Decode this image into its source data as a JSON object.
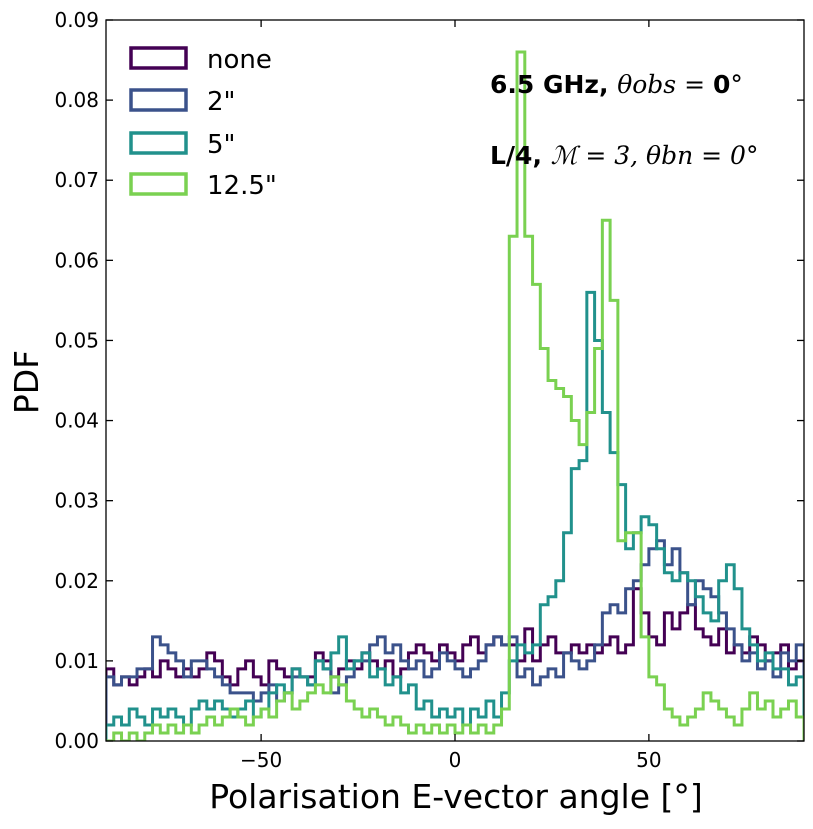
{
  "chart_data": {
    "type": "line",
    "subtype": "step-histogram",
    "xlabel": "Polarisation E-vector angle [°]",
    "ylabel": "PDF",
    "xlim": [
      -90,
      90
    ],
    "ylim": [
      0,
      0.09
    ],
    "xticks": [
      -50,
      0,
      50
    ],
    "xtick_labels": [
      "−50",
      "0",
      "50"
    ],
    "yticks": [
      0,
      0.01,
      0.02,
      0.03,
      0.04,
      0.05,
      0.06,
      0.07,
      0.08,
      0.09
    ],
    "ytick_labels": [
      "0.00",
      "0.01",
      "0.02",
      "0.03",
      "0.04",
      "0.05",
      "0.06",
      "0.07",
      "0.08",
      "0.09"
    ],
    "annotation_line1": {
      "bold": "6.5 GHz, ",
      "math": "θobs = ",
      "bold_value": "0",
      "deg": "°"
    },
    "annotation_line2": {
      "bold": "L/4, ",
      "math": "ℳ = 3, θbn = 0°"
    },
    "legend": {
      "location": "upper-left"
    },
    "bin_edges_start": -90,
    "bin_width": 2,
    "series": [
      {
        "name": "none",
        "color": "#440154",
        "values": [
          0.009,
          0.007,
          0.008,
          0.007,
          0.008,
          0.009,
          0.008,
          0.01,
          0.009,
          0.008,
          0.009,
          0.008,
          0.009,
          0.011,
          0.01,
          0.008,
          0.007,
          0.009,
          0.01,
          0.008,
          0.007,
          0.01,
          0.009,
          0.008,
          0.009,
          0.008,
          0.008,
          0.011,
          0.01,
          0.008,
          0.009,
          0.01,
          0.009,
          0.011,
          0.01,
          0.009,
          0.01,
          0.008,
          0.009,
          0.011,
          0.012,
          0.011,
          0.01,
          0.012,
          0.011,
          0.01,
          0.012,
          0.013,
          0.011,
          0.012,
          0.013,
          0.012,
          0.012,
          0.01,
          0.014,
          0.01,
          0.012,
          0.013,
          0.011,
          0.011,
          0.012,
          0.011,
          0.012,
          0.011,
          0.012,
          0.013,
          0.011,
          0.012,
          0.019,
          0.016,
          0.013,
          0.012,
          0.016,
          0.014,
          0.016,
          0.017,
          0.014,
          0.013,
          0.012,
          0.014,
          0.011,
          0.012,
          0.011,
          0.013,
          0.012,
          0.01,
          0.011,
          0.012,
          0.009,
          0.01
        ]
      },
      {
        "name": "2\"",
        "color": "#3b528b",
        "values": [
          0.008,
          0.007,
          0.008,
          0.008,
          0.009,
          0.009,
          0.013,
          0.012,
          0.011,
          0.01,
          0.008,
          0.01,
          0.01,
          0.009,
          0.008,
          0.007,
          0.006,
          0.006,
          0.006,
          0.005,
          0.006,
          0.007,
          0.005,
          0.006,
          0.008,
          0.008,
          0.007,
          0.01,
          0.009,
          0.006,
          0.007,
          0.008,
          0.01,
          0.01,
          0.012,
          0.013,
          0.011,
          0.012,
          0.01,
          0.009,
          0.01,
          0.008,
          0.009,
          0.011,
          0.01,
          0.009,
          0.008,
          0.009,
          0.01,
          0.012,
          0.013,
          0.012,
          0.013,
          0.008,
          0.009,
          0.007,
          0.008,
          0.009,
          0.008,
          0.011,
          0.01,
          0.009,
          0.01,
          0.012,
          0.016,
          0.017,
          0.016,
          0.019,
          0.02,
          0.022,
          0.024,
          0.025,
          0.022,
          0.024,
          0.021,
          0.017,
          0.02,
          0.019,
          0.018,
          0.016,
          0.014,
          0.012,
          0.01,
          0.011,
          0.009,
          0.01,
          0.008,
          0.011,
          0.01,
          0.012
        ]
      },
      {
        "name": "5\"",
        "color": "#21918c",
        "values": [
          0.002,
          0.003,
          0.002,
          0.004,
          0.003,
          0.002,
          0.004,
          0.003,
          0.004,
          0.003,
          0.002,
          0.004,
          0.005,
          0.004,
          0.005,
          0.004,
          0.003,
          0.004,
          0.005,
          0.003,
          0.004,
          0.006,
          0.007,
          0.006,
          0.009,
          0.008,
          0.007,
          0.01,
          0.009,
          0.011,
          0.013,
          0.009,
          0.01,
          0.011,
          0.008,
          0.009,
          0.007,
          0.008,
          0.006,
          0.007,
          0.004,
          0.005,
          0.003,
          0.004,
          0.003,
          0.004,
          0.002,
          0.004,
          0.003,
          0.005,
          0.003,
          0.006,
          0.01,
          0.012,
          0.011,
          0.012,
          0.017,
          0.018,
          0.02,
          0.026,
          0.034,
          0.035,
          0.056,
          0.05,
          0.041,
          0.036,
          0.032,
          0.024,
          0.026,
          0.028,
          0.027,
          0.024,
          0.021,
          0.02,
          0.021,
          0.02,
          0.018,
          0.016,
          0.015,
          0.02,
          0.022,
          0.019,
          0.014,
          0.012,
          0.01,
          0.011,
          0.009,
          0.009,
          0.007,
          0.008
        ]
      },
      {
        "name": "12.5\"",
        "color": "#7ad151",
        "values": [
          0.0,
          0.001,
          0.0,
          0.001,
          0.0,
          0.001,
          0.002,
          0.001,
          0.002,
          0.001,
          0.002,
          0.001,
          0.002,
          0.003,
          0.002,
          0.003,
          0.004,
          0.003,
          0.002,
          0.003,
          0.004,
          0.003,
          0.005,
          0.006,
          0.004,
          0.005,
          0.006,
          0.007,
          0.006,
          0.008,
          0.007,
          0.005,
          0.004,
          0.003,
          0.004,
          0.003,
          0.002,
          0.003,
          0.002,
          0.001,
          0.002,
          0.001,
          0.002,
          0.001,
          0.002,
          0.001,
          0.002,
          0.001,
          0.002,
          0.001,
          0.002,
          0.004,
          0.063,
          0.086,
          0.063,
          0.057,
          0.049,
          0.045,
          0.044,
          0.043,
          0.04,
          0.037,
          0.041,
          0.049,
          0.065,
          0.055,
          0.025,
          0.026,
          0.026,
          0.013,
          0.008,
          0.007,
          0.004,
          0.003,
          0.002,
          0.003,
          0.004,
          0.006,
          0.005,
          0.004,
          0.003,
          0.002,
          0.004,
          0.006,
          0.004,
          0.005,
          0.003,
          0.004,
          0.005,
          0.003
        ]
      }
    ]
  }
}
